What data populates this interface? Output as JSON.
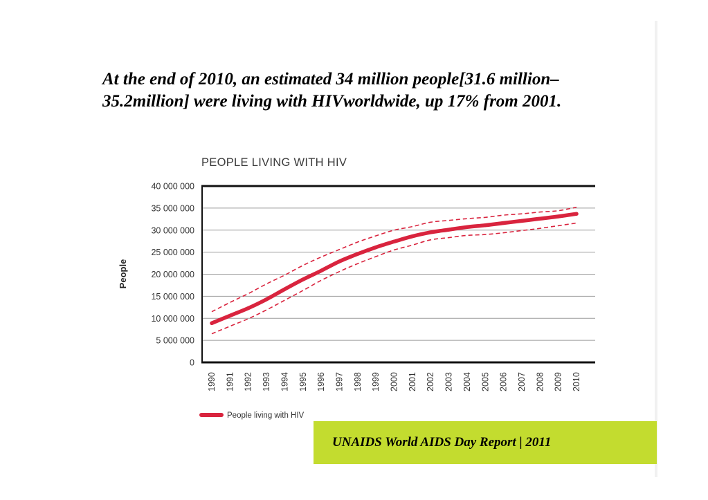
{
  "headline": {
    "line1": "At the end of 2010, an estimated 34 million people[31.6 million–",
    "line2": "35.2million] were living with HIVworldwide, up 17% from 2001."
  },
  "footer": {
    "text": "UNAIDS World AIDS Day Report | 2011",
    "color": "#c3dc2f"
  },
  "chart_data": {
    "type": "line",
    "title": "PEOPLE LIVING WITH HIV",
    "xlabel": "",
    "ylabel": "People",
    "ylim": [
      0,
      40000000
    ],
    "grid": true,
    "legend_position": "bottom-left",
    "x": [
      "1990",
      "1991",
      "1992",
      "1993",
      "1994",
      "1995",
      "1996",
      "1997",
      "1998",
      "1999",
      "2000",
      "2001",
      "2002",
      "2003",
      "2004",
      "2005",
      "2006",
      "2007",
      "2008",
      "2009",
      "2010"
    ],
    "y_ticks": [
      {
        "value": 0,
        "label": "0"
      },
      {
        "value": 5000000,
        "label": "5 000 000"
      },
      {
        "value": 10000000,
        "label": "10 000 000"
      },
      {
        "value": 15000000,
        "label": "15 000 000"
      },
      {
        "value": 20000000,
        "label": "20 000 000"
      },
      {
        "value": 25000000,
        "label": "25 000 000"
      },
      {
        "value": 30000000,
        "label": "30 000 000"
      },
      {
        "value": 35000000,
        "label": "35 000 000"
      },
      {
        "value": 40000000,
        "label": "40 000 000"
      }
    ],
    "series": [
      {
        "name": "People living with HIV",
        "color": "#d9243e",
        "values": [
          8900000,
          10600000,
          12300000,
          14300000,
          16600000,
          18800000,
          20800000,
          22900000,
          24600000,
          26100000,
          27400000,
          28600000,
          29500000,
          30100000,
          30700000,
          31100000,
          31600000,
          32100000,
          32600000,
          33100000,
          33700000
        ],
        "lower": [
          6500000,
          8200000,
          9900000,
          11900000,
          14100000,
          16300000,
          18600000,
          20600000,
          22400000,
          24000000,
          25500000,
          26600000,
          27800000,
          28300000,
          28800000,
          29000000,
          29400000,
          29900000,
          30400000,
          31000000,
          31600000
        ],
        "upper": [
          11500000,
          13600000,
          15600000,
          17800000,
          19800000,
          22000000,
          23900000,
          25600000,
          27300000,
          28700000,
          30000000,
          30800000,
          31800000,
          32200000,
          32600000,
          32900000,
          33400000,
          33700000,
          34100000,
          34400000,
          35200000
        ]
      }
    ]
  }
}
